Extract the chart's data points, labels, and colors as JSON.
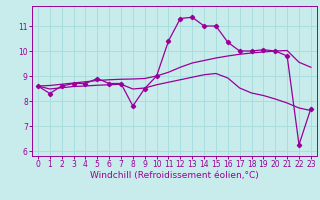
{
  "xlabel": "Windchill (Refroidissement éolien,°C)",
  "bg_color": "#c8ecec",
  "line_color": "#990099",
  "grid_color": "#aadddd",
  "xlim": [
    -0.5,
    23.5
  ],
  "ylim": [
    5.8,
    11.8
  ],
  "xticks": [
    0,
    1,
    2,
    3,
    4,
    5,
    6,
    7,
    8,
    9,
    10,
    11,
    12,
    13,
    14,
    15,
    16,
    17,
    18,
    19,
    20,
    21,
    22,
    23
  ],
  "yticks": [
    6,
    7,
    8,
    9,
    10,
    11
  ],
  "series1_x": [
    0,
    1,
    2,
    3,
    4,
    5,
    6,
    7,
    8,
    9,
    10,
    11,
    12,
    13,
    14,
    15,
    16,
    17,
    18,
    19,
    20,
    21,
    22,
    23
  ],
  "series1_y": [
    8.6,
    8.3,
    8.6,
    8.7,
    8.7,
    8.9,
    8.7,
    8.7,
    7.8,
    8.5,
    9.0,
    10.4,
    11.3,
    11.35,
    11.0,
    11.0,
    10.35,
    10.0,
    10.0,
    10.05,
    10.0,
    9.8,
    6.25,
    7.7
  ],
  "series2_x": [
    0,
    1,
    2,
    3,
    4,
    5,
    6,
    7,
    8,
    9,
    10,
    11,
    12,
    13,
    14,
    15,
    16,
    17,
    18,
    19,
    20,
    21,
    22,
    23
  ],
  "series2_y": [
    8.6,
    8.62,
    8.67,
    8.72,
    8.77,
    8.82,
    8.85,
    8.87,
    8.88,
    8.9,
    9.0,
    9.15,
    9.35,
    9.52,
    9.62,
    9.72,
    9.8,
    9.87,
    9.92,
    9.96,
    10.0,
    10.02,
    9.55,
    9.35
  ],
  "series3_x": [
    0,
    1,
    2,
    3,
    4,
    5,
    6,
    7,
    8,
    9,
    10,
    11,
    12,
    13,
    14,
    15,
    16,
    17,
    18,
    19,
    20,
    21,
    22,
    23
  ],
  "series3_y": [
    8.6,
    8.48,
    8.53,
    8.58,
    8.6,
    8.63,
    8.65,
    8.67,
    8.48,
    8.52,
    8.65,
    8.75,
    8.85,
    8.95,
    9.05,
    9.1,
    8.92,
    8.52,
    8.32,
    8.22,
    8.08,
    7.92,
    7.72,
    7.62
  ],
  "tick_fontsize": 5.5,
  "xlabel_fontsize": 6.5
}
